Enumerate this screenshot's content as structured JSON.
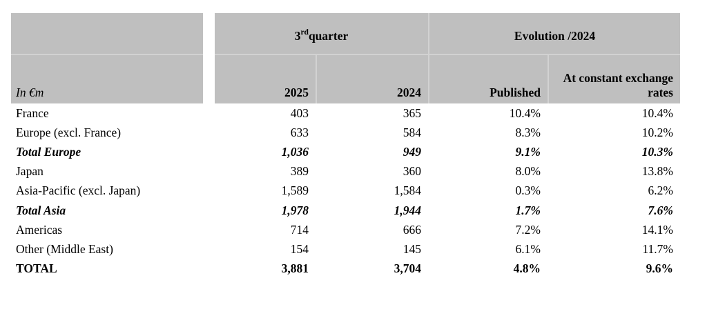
{
  "table": {
    "colors": {
      "header_bg": "#bfbfbf",
      "divider": "#d2d2d2",
      "text": "#000000",
      "page_bg": "#ffffff"
    },
    "header": {
      "quarter_group": {
        "number": "3",
        "ordinal": "rd",
        "word": " quarter"
      },
      "evolution_group": "Evolution /2024",
      "unit_label": "In €m",
      "columns": [
        "2025",
        "2024",
        "Published",
        "At constant exchange rates"
      ]
    },
    "rows": [
      {
        "label": "France",
        "values": [
          "403",
          "365",
          "10.4%",
          "10.4%"
        ],
        "emphasis": "none"
      },
      {
        "label": "Europe (excl. France)",
        "values": [
          "633",
          "584",
          "8.3%",
          "10.2%"
        ],
        "emphasis": "none"
      },
      {
        "label": "Total Europe",
        "values": [
          "1,036",
          "949",
          "9.1%",
          "10.3%"
        ],
        "emphasis": "subtotal"
      },
      {
        "label": "Japan",
        "values": [
          "389",
          "360",
          "8.0%",
          "13.8%"
        ],
        "emphasis": "none"
      },
      {
        "label": "Asia-Pacific (excl. Japan)",
        "values": [
          "1,589",
          "1,584",
          "0.3%",
          "6.2%"
        ],
        "emphasis": "none"
      },
      {
        "label": "Total Asia",
        "values": [
          "1,978",
          "1,944",
          "1.7%",
          "7.6%"
        ],
        "emphasis": "subtotal"
      },
      {
        "label": "Americas",
        "values": [
          "714",
          "666",
          "7.2%",
          "14.1%"
        ],
        "emphasis": "none"
      },
      {
        "label": "Other (Middle East)",
        "values": [
          "154",
          "145",
          "6.1%",
          "11.7%"
        ],
        "emphasis": "none"
      },
      {
        "label": "TOTAL",
        "values": [
          "3,881",
          "3,704",
          "4.8%",
          "9.6%"
        ],
        "emphasis": "grand-total"
      }
    ]
  }
}
